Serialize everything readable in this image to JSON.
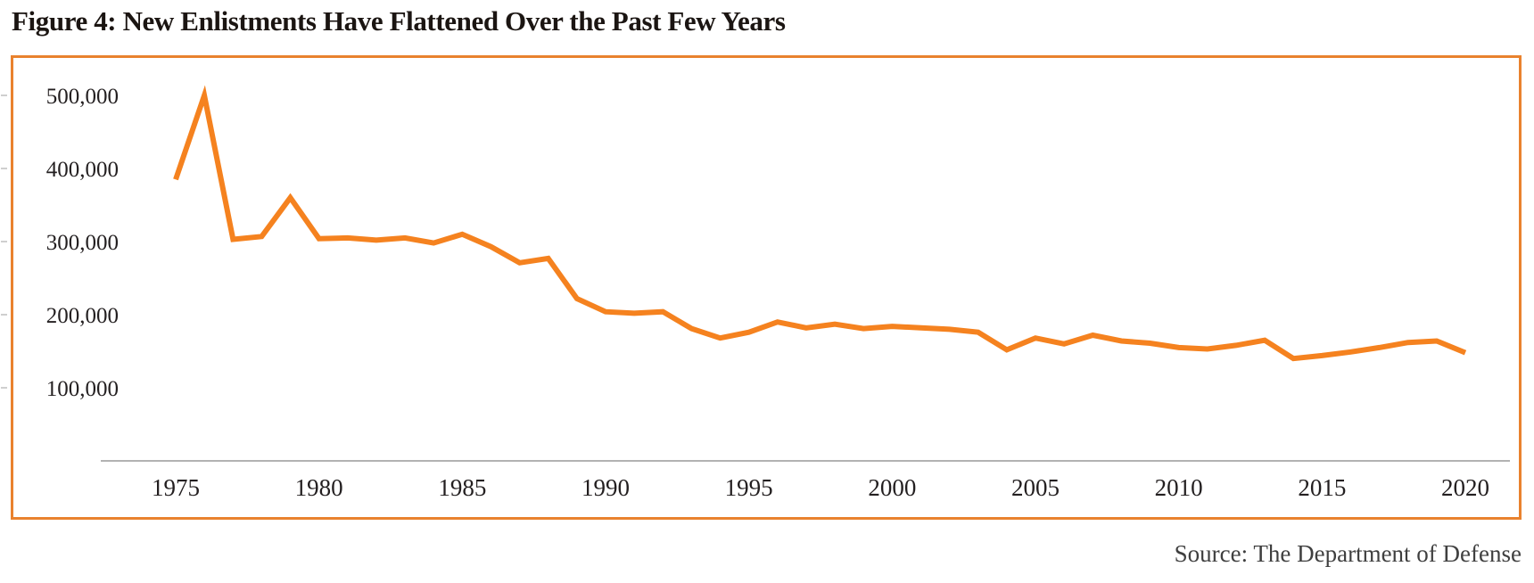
{
  "figure": {
    "title": "Figure 4: New Enlistments Have Flattened Over the Past Few Years",
    "source": "Source: The Department of Defense"
  },
  "colors": {
    "line": "#f5821f",
    "frame_border": "#e9822e",
    "axis_line": "#b2b2b2",
    "outer_tick": "#cfcfcf",
    "tick_text": "#231f20",
    "title_text": "#1b1512",
    "source_text": "#3f3f3f"
  },
  "chart_data": {
    "type": "line",
    "title": "Figure 4: New Enlistments Have Flattened Over the Past Few Years",
    "source": "Source: The Department of Defense",
    "xlabel": "",
    "ylabel": "",
    "grid": false,
    "legend": "none",
    "xlim": [
      1973,
      2022
    ],
    "ylim": [
      0,
      520000
    ],
    "x": [
      1975,
      1976,
      1977,
      1978,
      1979,
      1980,
      1981,
      1982,
      1983,
      1984,
      1985,
      1986,
      1987,
      1988,
      1989,
      1990,
      1991,
      1992,
      1993,
      1994,
      1995,
      1996,
      1997,
      1998,
      1999,
      2000,
      2001,
      2002,
      2003,
      2004,
      2005,
      2006,
      2007,
      2008,
      2009,
      2010,
      2011,
      2012,
      2013,
      2014,
      2015,
      2016,
      2017,
      2018,
      2019,
      2020
    ],
    "series": [
      {
        "name": "New enlistments",
        "values": [
          385000,
          500000,
          303000,
          307000,
          360000,
          304000,
          305000,
          302000,
          305000,
          298000,
          310000,
          293000,
          271000,
          277000,
          222000,
          204000,
          202000,
          204000,
          181000,
          168000,
          176000,
          190000,
          182000,
          187000,
          181000,
          184000,
          182000,
          180000,
          176000,
          152000,
          168000,
          160000,
          172000,
          164000,
          161000,
          155000,
          153000,
          158000,
          165000,
          140000,
          144000,
          149000,
          155000,
          162000,
          164000,
          148000
        ]
      }
    ],
    "x_ticks": [
      {
        "value": 1975,
        "label": "1975"
      },
      {
        "value": 1980,
        "label": "1980"
      },
      {
        "value": 1985,
        "label": "1985"
      },
      {
        "value": 1990,
        "label": "1990"
      },
      {
        "value": 1995,
        "label": "1995"
      },
      {
        "value": 2000,
        "label": "2000"
      },
      {
        "value": 2005,
        "label": "2005"
      },
      {
        "value": 2010,
        "label": "2010"
      },
      {
        "value": 2015,
        "label": "2015"
      },
      {
        "value": 2020,
        "label": "2020"
      }
    ],
    "y_ticks": [
      {
        "value": 100000,
        "label": "100,000"
      },
      {
        "value": 200000,
        "label": "200,000"
      },
      {
        "value": 300000,
        "label": "300,000"
      },
      {
        "value": 400000,
        "label": "400,000"
      },
      {
        "value": 500000,
        "label": "500,000"
      }
    ]
  }
}
